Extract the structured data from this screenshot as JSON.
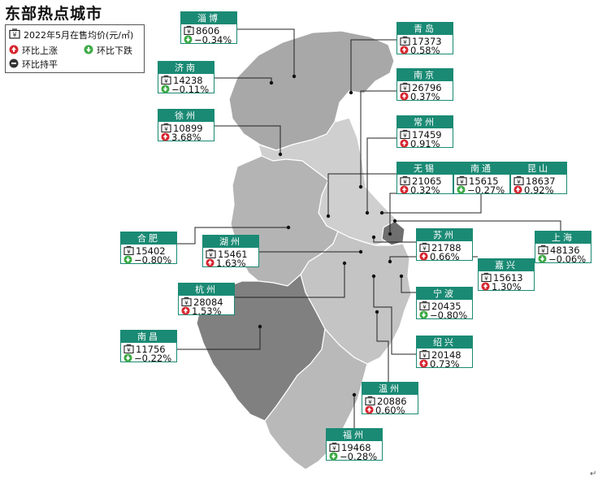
{
  "title": "东部热点城市",
  "legend": {
    "price_label": "2022年5月在售均价(元/㎡)",
    "up_label": "环比上涨",
    "down_label": "环比下跌",
    "flat_label": "环比持平",
    "up_color": "#d7262f",
    "down_color": "#3daa45",
    "flat_color": "#333333"
  },
  "cities": [
    {
      "name": "淄博",
      "price": "8606",
      "change": "−0.34%",
      "trend": "down"
    },
    {
      "name": "青岛",
      "price": "17373",
      "change": "0.58%",
      "trend": "up"
    },
    {
      "name": "济南",
      "price": "14238",
      "change": "−0.11%",
      "trend": "down"
    },
    {
      "name": "南京",
      "price": "26796",
      "change": "0.37%",
      "trend": "up"
    },
    {
      "name": "徐州",
      "price": "10899",
      "change": "3.68%",
      "trend": "up"
    },
    {
      "name": "常州",
      "price": "17459",
      "change": "0.91%",
      "trend": "up"
    },
    {
      "name": "无锡",
      "price": "21065",
      "change": "0.32%",
      "trend": "up"
    },
    {
      "name": "南通",
      "price": "15615",
      "change": "−0.27%",
      "trend": "down"
    },
    {
      "name": "昆山",
      "price": "18637",
      "change": "0.92%",
      "trend": "up"
    },
    {
      "name": "合肥",
      "price": "15402",
      "change": "−0.80%",
      "trend": "down"
    },
    {
      "name": "湖州",
      "price": "15461",
      "change": "1.63%",
      "trend": "up"
    },
    {
      "name": "苏州",
      "price": "21788",
      "change": "0.66%",
      "trend": "up"
    },
    {
      "name": "上海",
      "price": "48136",
      "change": "−0.06%",
      "trend": "down"
    },
    {
      "name": "嘉兴",
      "price": "15613",
      "change": "1.30%",
      "trend": "up"
    },
    {
      "name": "杭州",
      "price": "28084",
      "change": "1.53%",
      "trend": "up"
    },
    {
      "name": "宁波",
      "price": "20435",
      "change": "−0.80%",
      "trend": "down"
    },
    {
      "name": "南昌",
      "price": "11756",
      "change": "−0.22%",
      "trend": "down"
    },
    {
      "name": "绍兴",
      "price": "20148",
      "change": "0.73%",
      "trend": "up"
    },
    {
      "name": "温州",
      "price": "20886",
      "change": "0.60%",
      "trend": "up"
    },
    {
      "name": "福州",
      "price": "19468",
      "change": "−0.28%",
      "trend": "down"
    }
  ],
  "colors": {
    "card_accent": "#1a8a74",
    "shandong_fill": "#a8a8a8",
    "jiangsu_fill": "#cfcfcf",
    "anhui_fill": "#b4b4b4",
    "zhejiang_fill": "#c4c4c4",
    "jiangxi_fill": "#808080",
    "fujian_fill": "#b9b9b9",
    "shanghai_fill": "#6f6f6f"
  },
  "icons": {
    "price": "price-tag-icon",
    "up": "up-arrow-drop-icon",
    "down": "down-arrow-drop-icon",
    "flat": "minus-circle-icon"
  }
}
